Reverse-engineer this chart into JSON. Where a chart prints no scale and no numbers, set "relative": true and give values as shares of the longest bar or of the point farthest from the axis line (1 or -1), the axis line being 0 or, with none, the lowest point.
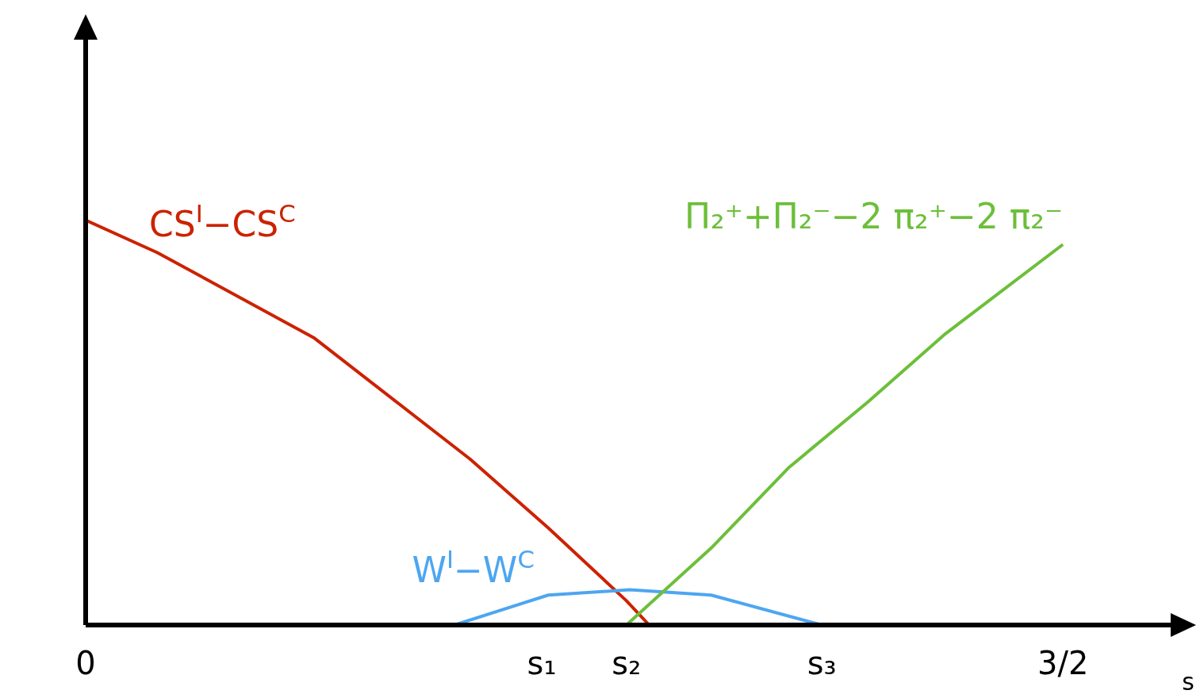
{
  "chart_data": {
    "type": "line",
    "relative": true,
    "xlabel": "s",
    "xlim": [
      0,
      1.68
    ],
    "xticks": [
      0,
      {
        "value": 0.7,
        "label": "s₁"
      },
      {
        "value": 0.83,
        "label": "s₂"
      },
      {
        "value": 1.13,
        "label": "s₃"
      },
      {
        "value": 1.5,
        "label": "3/2"
      }
    ],
    "series": [
      {
        "name": "CS$^{I}$−CS$^{C}$",
        "color": "#cc2200",
        "x": [
          0,
          0.11,
          0.35,
          0.59,
          0.71,
          0.83,
          0.865
        ],
        "values": [
          1,
          0.92,
          0.71,
          0.41,
          0.24,
          0.06,
          0
        ]
      },
      {
        "name": "W$^{I}$−W$^{C}$",
        "color": "#4da6f0",
        "x": [
          0.566,
          0.71,
          0.835,
          0.96,
          1.13
        ],
        "values": [
          0,
          0.074,
          0.087,
          0.074,
          0
        ]
      },
      {
        "name": "Π₂⁺+Π₂⁻−2 π₂⁺−2 π₂⁻",
        "color": "#6cbf3a",
        "x": [
          0.83,
          0.96,
          1.08,
          1.2,
          1.32,
          1.5
        ],
        "values": [
          0,
          0.19,
          0.39,
          0.55,
          0.72,
          0.94
        ]
      }
    ],
    "grid": false,
    "legend": false,
    "marker": "none",
    "line_style": "solid"
  }
}
